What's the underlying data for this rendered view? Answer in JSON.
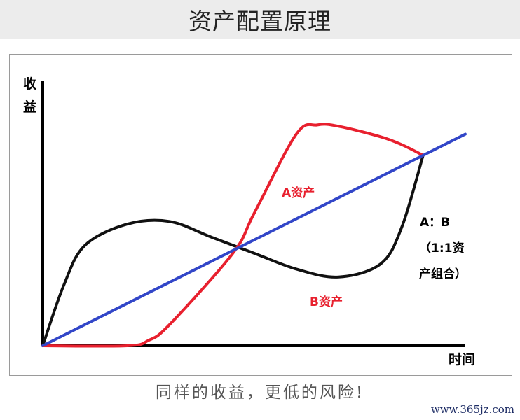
{
  "page": {
    "title": "资产配置原理",
    "caption": "同样的收益，更低的风险!",
    "watermark": "www.365jz.com"
  },
  "chart_data": {
    "type": "line",
    "title": "",
    "xlabel": "时间",
    "ylabel": "收益",
    "xlim": [
      0,
      10
    ],
    "ylim": [
      0,
      10
    ],
    "annotations": {
      "a_label": "A资产",
      "b_label": "B资产",
      "mix_line1": "A：B",
      "mix_line2": "（1:1资",
      "mix_line3": "产组合）"
    },
    "series": [
      {
        "name": "A资产",
        "color": "#e8202e",
        "x": [
          0,
          2,
          2.5,
          3,
          4.5,
          5,
          6,
          6.5,
          7,
          8,
          8.5,
          9
        ],
        "y": [
          0,
          0,
          0.2,
          0.8,
          3.5,
          5,
          8,
          8.35,
          8.3,
          7.9,
          7.6,
          7.2
        ]
      },
      {
        "name": "B资产",
        "color": "#111111",
        "x": [
          0,
          0.5,
          1,
          2,
          3,
          4,
          5,
          6,
          7,
          8,
          8.5,
          9
        ],
        "y": [
          0,
          2.3,
          3.8,
          4.6,
          4.7,
          4.1,
          3.5,
          2.9,
          2.6,
          3.1,
          4.5,
          7.2
        ]
      },
      {
        "name": "A：B（1:1资产组合）",
        "color": "#3246c8",
        "x": [
          0,
          10
        ],
        "y": [
          0,
          8
        ]
      }
    ]
  }
}
